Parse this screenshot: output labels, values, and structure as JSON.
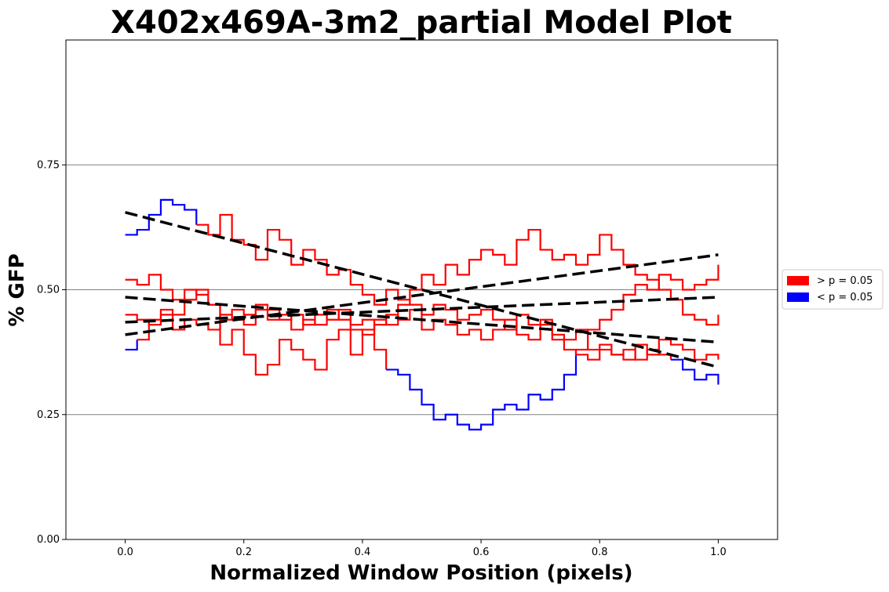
{
  "chart_data": {
    "type": "line",
    "title": "X402x469A-3m2_partial Model Plot",
    "xlabel": "Normalized Window Position (pixels)",
    "ylabel": "% GFP",
    "xlim": [
      -0.1,
      1.1
    ],
    "ylim": [
      0.0,
      1.0
    ],
    "xticks": [
      0.0,
      0.2,
      0.4,
      0.6,
      0.8,
      1.0
    ],
    "xtick_labels": [
      "0.0",
      "0.2",
      "0.4",
      "0.6",
      "0.8",
      "1.0"
    ],
    "yticks": [
      0.0,
      0.25,
      0.5,
      0.75
    ],
    "ytick_labels": [
      "0.00",
      "0.25",
      "0.50",
      "0.75"
    ],
    "grid": "horizontal lines at y ticks",
    "legend": {
      "placement": "outside-right",
      "entries": [
        {
          "label": "> p = 0.05",
          "color": "#ff0000"
        },
        {
          "label": "< p = 0.05",
          "color": "#0000ff"
        }
      ]
    },
    "colors": {
      "significant_high": "#ff0000",
      "significant_low": "#0000ff",
      "fit": "#000000",
      "grid": "#808080"
    },
    "series": [
      {
        "x": [
          0.0,
          0.02,
          0.04,
          0.06,
          0.08,
          0.1,
          0.12,
          0.14,
          0.16,
          0.18,
          0.2,
          0.22,
          0.24,
          0.26,
          0.28,
          0.3,
          0.32,
          0.34,
          0.36,
          0.38,
          0.4,
          0.42,
          0.44,
          0.46,
          0.48,
          0.5,
          0.52,
          0.54,
          0.56,
          0.58,
          0.6,
          0.62,
          0.64,
          0.66,
          0.68,
          0.7,
          0.72,
          0.74,
          0.76,
          0.78,
          0.8,
          0.82,
          0.84,
          0.86,
          0.88,
          0.9,
          0.92,
          0.94,
          0.96,
          0.98,
          1.0
        ],
        "y": [
          0.61,
          0.62,
          0.65,
          0.68,
          0.67,
          0.66,
          0.63,
          0.61,
          0.65,
          0.6,
          0.59,
          0.56,
          0.62,
          0.6,
          0.55,
          0.58,
          0.56,
          0.53,
          0.54,
          0.51,
          0.49,
          0.47,
          0.5,
          0.48,
          0.47,
          0.45,
          0.47,
          0.46,
          0.44,
          0.45,
          0.46,
          0.44,
          0.42,
          0.45,
          0.43,
          0.44,
          0.41,
          0.4,
          0.42,
          0.38,
          0.39,
          0.37,
          0.38,
          0.36,
          0.38,
          0.37,
          0.36,
          0.34,
          0.32,
          0.33,
          0.31
        ],
        "fit": [
          0.655,
          0.345
        ],
        "blue_ranges": [
          [
            0.0,
            0.01
          ],
          [
            0.02,
            0.11
          ],
          [
            0.92,
            1.0
          ]
        ]
      },
      {
        "x": [
          0.0,
          0.02,
          0.04,
          0.06,
          0.08,
          0.1,
          0.12,
          0.14,
          0.16,
          0.18,
          0.2,
          0.22,
          0.24,
          0.26,
          0.28,
          0.3,
          0.32,
          0.34,
          0.36,
          0.38,
          0.4,
          0.42,
          0.44,
          0.46,
          0.48,
          0.5,
          0.52,
          0.54,
          0.56,
          0.58,
          0.6,
          0.62,
          0.64,
          0.66,
          0.68,
          0.7,
          0.72,
          0.74,
          0.76,
          0.78,
          0.8,
          0.82,
          0.84,
          0.86,
          0.88,
          0.9,
          0.92,
          0.94,
          0.96,
          0.98,
          1.0
        ],
        "y": [
          0.52,
          0.51,
          0.53,
          0.5,
          0.48,
          0.5,
          0.49,
          0.47,
          0.44,
          0.46,
          0.45,
          0.47,
          0.46,
          0.44,
          0.45,
          0.43,
          0.45,
          0.44,
          0.46,
          0.43,
          0.44,
          0.38,
          0.34,
          0.33,
          0.3,
          0.27,
          0.24,
          0.25,
          0.23,
          0.22,
          0.23,
          0.26,
          0.27,
          0.26,
          0.29,
          0.28,
          0.3,
          0.33,
          0.38,
          0.42,
          0.44,
          0.46,
          0.49,
          0.51,
          0.5,
          0.53,
          0.52,
          0.5,
          0.51,
          0.52,
          0.55
        ],
        "fit": [
          0.485,
          0.395
        ],
        "blue_ranges": [
          [
            0.44,
            0.75
          ]
        ]
      },
      {
        "x": [
          0.0,
          0.02,
          0.04,
          0.06,
          0.08,
          0.1,
          0.12,
          0.14,
          0.16,
          0.18,
          0.2,
          0.22,
          0.24,
          0.26,
          0.28,
          0.3,
          0.32,
          0.34,
          0.36,
          0.38,
          0.4,
          0.42,
          0.44,
          0.46,
          0.48,
          0.5,
          0.52,
          0.54,
          0.56,
          0.58,
          0.6,
          0.62,
          0.64,
          0.66,
          0.68,
          0.7,
          0.72,
          0.74,
          0.76,
          0.78,
          0.8,
          0.82,
          0.84,
          0.86,
          0.88,
          0.9,
          0.92,
          0.94,
          0.96,
          0.98,
          1.0
        ],
        "y": [
          0.45,
          0.44,
          0.43,
          0.45,
          0.42,
          0.44,
          0.43,
          0.42,
          0.45,
          0.44,
          0.43,
          0.46,
          0.44,
          0.45,
          0.42,
          0.44,
          0.43,
          0.46,
          0.44,
          0.42,
          0.41,
          0.44,
          0.43,
          0.47,
          0.5,
          0.53,
          0.51,
          0.55,
          0.53,
          0.56,
          0.58,
          0.57,
          0.55,
          0.6,
          0.62,
          0.58,
          0.56,
          0.57,
          0.55,
          0.57,
          0.61,
          0.58,
          0.55,
          0.53,
          0.52,
          0.5,
          0.48,
          0.45,
          0.44,
          0.43,
          0.45
        ],
        "fit": [
          0.41,
          0.57
        ],
        "blue_ranges": []
      },
      {
        "x": [
          0.0,
          0.02,
          0.04,
          0.06,
          0.08,
          0.1,
          0.12,
          0.14,
          0.16,
          0.18,
          0.2,
          0.22,
          0.24,
          0.26,
          0.28,
          0.3,
          0.32,
          0.34,
          0.36,
          0.38,
          0.4,
          0.42,
          0.44,
          0.46,
          0.48,
          0.5,
          0.52,
          0.54,
          0.56,
          0.58,
          0.6,
          0.62,
          0.64,
          0.66,
          0.68,
          0.7,
          0.72,
          0.74,
          0.76,
          0.78,
          0.8,
          0.82,
          0.84,
          0.86,
          0.88,
          0.9,
          0.92,
          0.94,
          0.96,
          0.98,
          1.0
        ],
        "y": [
          0.38,
          0.4,
          0.44,
          0.46,
          0.45,
          0.48,
          0.5,
          0.47,
          0.39,
          0.42,
          0.37,
          0.33,
          0.35,
          0.4,
          0.38,
          0.36,
          0.34,
          0.4,
          0.42,
          0.37,
          0.42,
          0.43,
          0.45,
          0.44,
          0.46,
          0.42,
          0.44,
          0.43,
          0.41,
          0.42,
          0.4,
          0.42,
          0.44,
          0.41,
          0.4,
          0.43,
          0.4,
          0.38,
          0.37,
          0.36,
          0.38,
          0.37,
          0.36,
          0.39,
          0.37,
          0.4,
          0.39,
          0.38,
          0.36,
          0.37,
          0.36
        ],
        "fit": [
          0.435,
          0.485
        ],
        "blue_ranges": [
          [
            0.0,
            0.01
          ]
        ]
      }
    ]
  }
}
